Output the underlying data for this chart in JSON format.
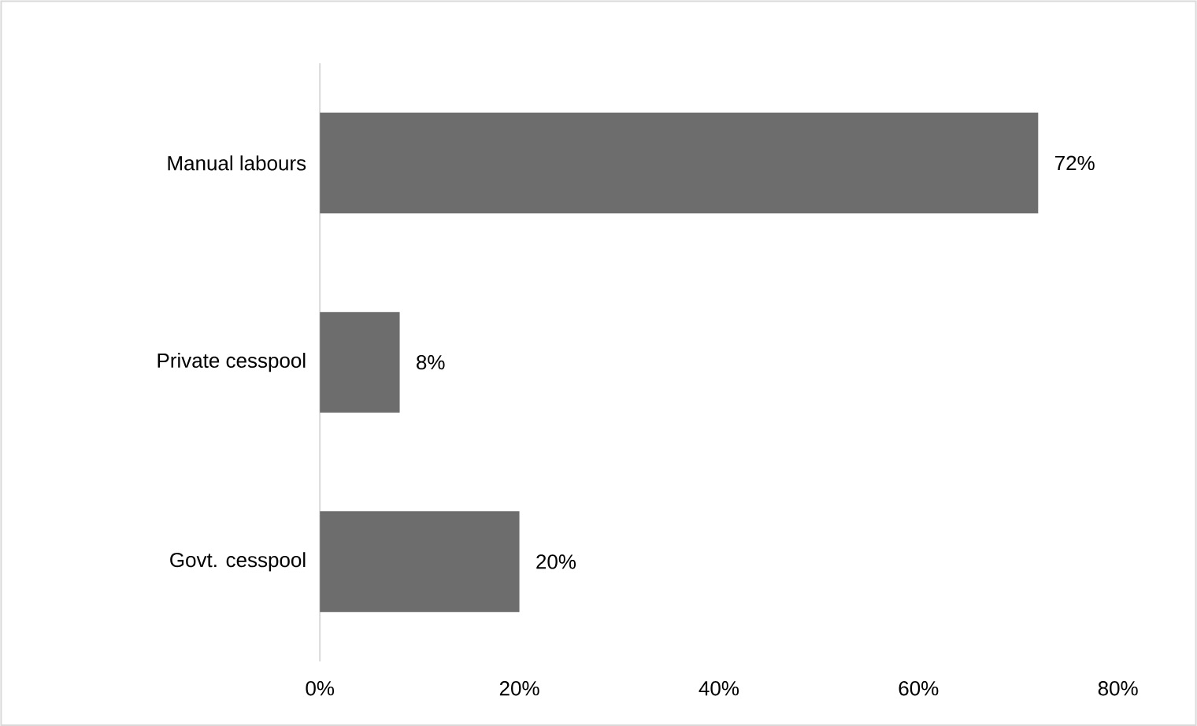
{
  "chart_data": {
    "type": "bar",
    "orientation": "horizontal",
    "categories": [
      "Manual labours",
      "Private cesspool",
      "Govt. cesspool"
    ],
    "values": [
      72,
      8,
      20
    ],
    "value_labels": [
      "72%",
      "8%",
      "20%"
    ],
    "color": "#6d6d6d",
    "xlim": [
      0,
      80
    ],
    "xticks": [
      {
        "value": 0,
        "label": "0%"
      },
      {
        "value": 20,
        "label": "20%"
      },
      {
        "value": 40,
        "label": "40%"
      },
      {
        "value": 60,
        "label": "60%"
      },
      {
        "value": 80,
        "label": "80%"
      }
    ]
  }
}
